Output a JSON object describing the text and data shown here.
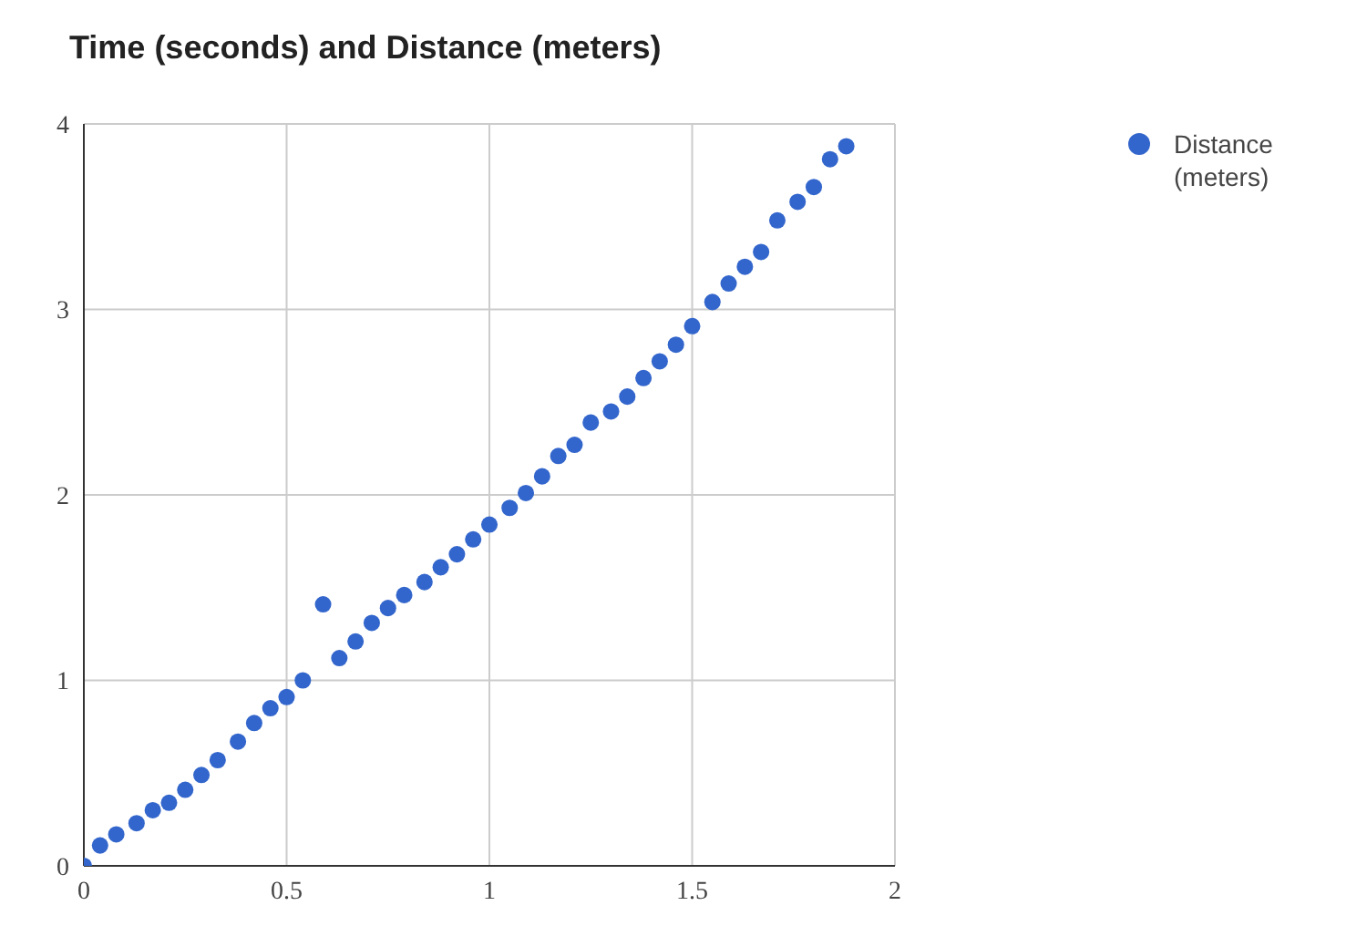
{
  "chart_data": {
    "type": "scatter",
    "title": "Time (seconds) and Distance (meters)",
    "x": [
      0,
      0.04,
      0.08,
      0.13,
      0.17,
      0.21,
      0.25,
      0.29,
      0.33,
      0.38,
      0.42,
      0.46,
      0.5,
      0.54,
      0.59,
      0.63,
      0.67,
      0.71,
      0.75,
      0.79,
      0.84,
      0.88,
      0.92,
      0.96,
      1.0,
      1.05,
      1.09,
      1.13,
      1.17,
      1.21,
      1.25,
      1.3,
      1.34,
      1.38,
      1.42,
      1.46,
      1.5,
      1.55,
      1.59,
      1.63,
      1.67,
      1.71,
      1.76,
      1.8,
      1.84,
      1.88
    ],
    "series": [
      {
        "name": "Distance (meters)",
        "color": "#3366cc",
        "values": [
          0,
          0.11,
          0.17,
          0.23,
          0.3,
          0.34,
          0.41,
          0.49,
          0.57,
          0.67,
          0.77,
          0.85,
          0.91,
          1.0,
          1.41,
          1.12,
          1.21,
          1.31,
          1.39,
          1.46,
          1.53,
          1.61,
          1.68,
          1.76,
          1.84,
          1.93,
          2.01,
          2.1,
          2.21,
          2.27,
          2.39,
          2.45,
          2.53,
          2.63,
          2.72,
          2.81,
          2.91,
          3.04,
          3.14,
          3.23,
          3.31,
          3.48,
          3.58,
          3.66,
          3.81,
          3.88
        ]
      }
    ],
    "xlim": [
      0,
      2
    ],
    "xticks": [
      0,
      0.5,
      1,
      1.5,
      2
    ],
    "ylim": [
      0,
      4
    ],
    "yticks": [
      0,
      1,
      2,
      3,
      4
    ],
    "grid": true,
    "legend": "top right",
    "marker": "circle"
  }
}
